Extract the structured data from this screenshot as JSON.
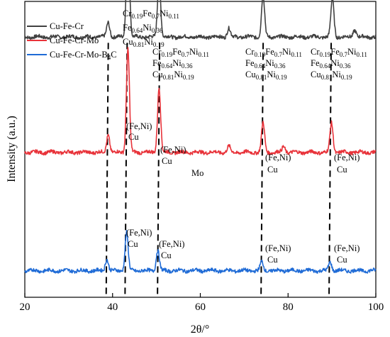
{
  "chart_data": {
    "type": "line",
    "xlabel": "2θ/°",
    "ylabel": "Intensity (a.u.)",
    "xlim": [
      20,
      100
    ],
    "x_ticks": [
      "20",
      "40",
      "60",
      "80",
      "100"
    ],
    "grid": false,
    "legend_position": "top-left",
    "series": [
      {
        "name": "Cu-Fe-Cr",
        "color": "#404040",
        "baseline": 0.88,
        "peaks": [
          [
            39.0,
            0.05
          ],
          [
            43.5,
            0.37
          ],
          [
            50.6,
            0.2
          ],
          [
            74.3,
            0.14
          ],
          [
            90.1,
            0.13
          ],
          [
            66.5,
            0.03
          ],
          [
            95.2,
            0.025
          ]
        ]
      },
      {
        "name": "Cu-Fe-Cr-Mo",
        "color": "#e8333a",
        "baseline": 0.49,
        "peaks": [
          [
            39.0,
            0.06
          ],
          [
            43.5,
            0.35
          ],
          [
            50.6,
            0.22
          ],
          [
            74.3,
            0.1
          ],
          [
            89.9,
            0.1
          ],
          [
            66.5,
            0.02
          ],
          [
            79.0,
            0.02
          ]
        ]
      },
      {
        "name": "Cu-Fe-Cr-Mo-B",
        "name_subscript": "4",
        "name_suffix": "C",
        "color": "#1f6bd6",
        "baseline": 0.09,
        "peaks": [
          [
            38.7,
            0.04
          ],
          [
            43.2,
            0.13
          ],
          [
            50.3,
            0.07
          ],
          [
            74.0,
            0.03
          ],
          [
            89.6,
            0.03
          ]
        ]
      }
    ],
    "reference_lines_x": [
      38.7,
      43.0,
      50.4,
      74.0,
      89.5
    ],
    "annotations": {
      "phase_cr": {
        "base1": "Cr",
        "sub1": "0.19",
        "base2": "Fe",
        "sub2": "0.7",
        "base3": "Ni",
        "sub3": "0.11"
      },
      "phase_fe": {
        "base1": "Fe",
        "sub1": "0.64",
        "base2": "Ni",
        "sub2": "0.36"
      },
      "phase_cu": {
        "base1": "Cu",
        "sub1": "0.81",
        "base2": "Ni",
        "sub2": "0.19"
      },
      "fe_ni": "(Fe,Ni)",
      "cu": "Cu",
      "mo": "Mo"
    }
  }
}
